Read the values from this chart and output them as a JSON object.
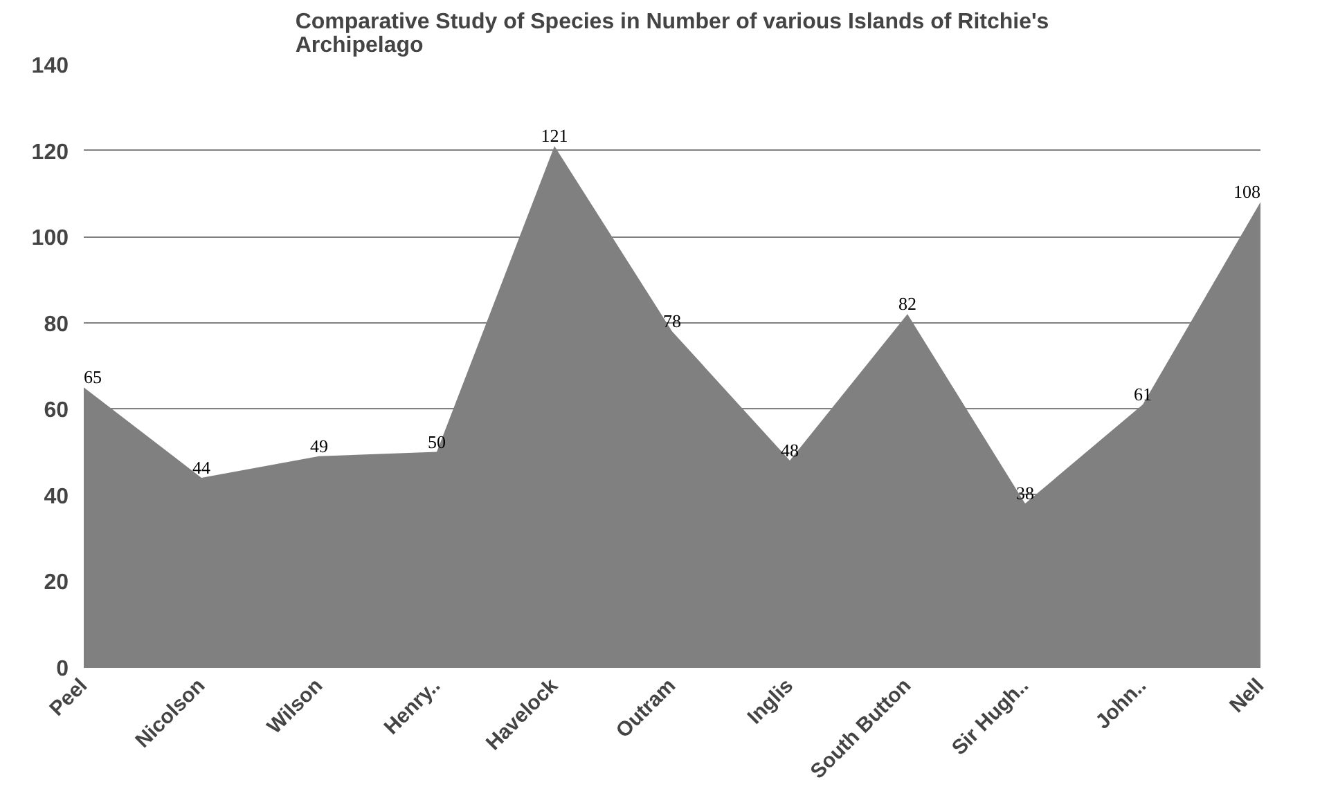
{
  "chart_data": {
    "type": "area",
    "title": "Comparative Study of Species in Number of various Islands of Ritchie's\nArchipelago",
    "categories": [
      "Peel",
      "Nicolson",
      "Wilson",
      "Henry..",
      "Havelock",
      "Outram",
      "Inglis",
      "South Button",
      "Sir Hugh..",
      "John..",
      "Nell"
    ],
    "values": [
      65,
      44,
      49,
      50,
      121,
      78,
      48,
      82,
      38,
      61,
      108
    ],
    "color": "#808080",
    "ylim": [
      0,
      140
    ],
    "yticks": [
      0,
      20,
      40,
      60,
      80,
      100,
      120,
      140
    ],
    "grid": "y",
    "data_labels": true
  }
}
